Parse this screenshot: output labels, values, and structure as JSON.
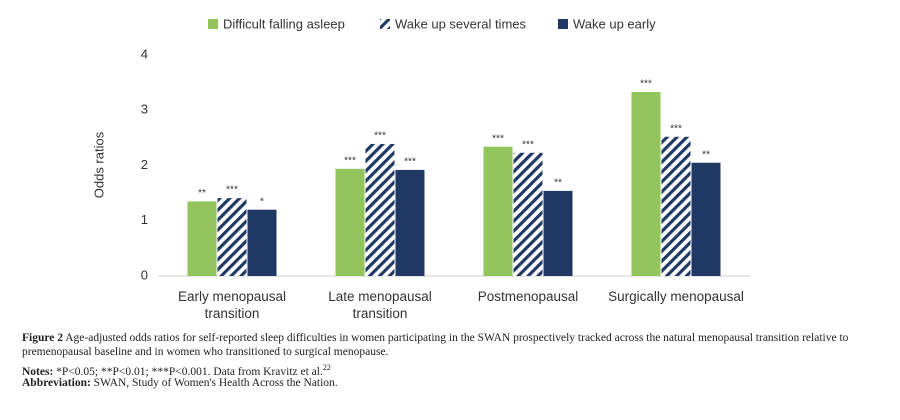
{
  "chart_data": {
    "type": "bar",
    "ylabel": "Odds ratios",
    "categories": [
      "Early menopausal\ntransition",
      "Late menopausal\ntransition",
      "Postmenopausal",
      "Surgically menopausal"
    ],
    "series": [
      {
        "name": "Difficult falling asleep",
        "color": "#92c55b",
        "pattern": "solid",
        "values": [
          1.35,
          1.94,
          2.34,
          3.33
        ],
        "significance": [
          "**",
          "***",
          "***",
          "***"
        ]
      },
      {
        "name": "Wake up several times",
        "color": "#1f3864",
        "pattern": "hatch",
        "values": [
          1.41,
          2.39,
          2.23,
          2.52
        ],
        "significance": [
          "***",
          "***",
          "***",
          "***"
        ]
      },
      {
        "name": "Wake up early",
        "color": "#203864",
        "pattern": "solid",
        "values": [
          1.2,
          1.92,
          1.54,
          2.05
        ],
        "significance": [
          "*",
          "***",
          "**",
          "**"
        ]
      }
    ],
    "ylim": [
      0,
      4
    ],
    "yticks": [
      0,
      1,
      2,
      3,
      4
    ],
    "grid": false,
    "legend": "top"
  },
  "caption": {
    "label": "Figure 2",
    "text": "Age-adjusted odds ratios for self-reported sleep difficulties in women participating in the SWAN prospectively tracked across the natural menopausal transition relative to premenopausal baseline and in women who transitioned to surgical menopause."
  },
  "notes": {
    "label": "Notes:",
    "text": "*P<0.05; **P<0.01; ***P<0.001. Data from Kravitz et al.",
    "ref": "22"
  },
  "abbreviation": {
    "label": "Abbreviation:",
    "text": "SWAN, Study of Women's Health Across the Nation."
  }
}
